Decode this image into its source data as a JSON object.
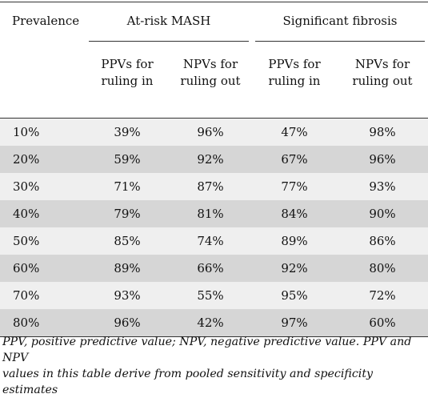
{
  "table": {
    "prevalence_header": "Prevalence",
    "groups": [
      {
        "title": "At-risk MASH",
        "columns": [
          "PPVs for ruling in",
          "NPVs for ruling out"
        ]
      },
      {
        "title": "Significant fibrosis",
        "columns": [
          "PPVs for ruling in",
          "NPVs for ruling out"
        ]
      }
    ],
    "rows": [
      {
        "prevalence": "10%",
        "mash_ppv": "39%",
        "mash_npv": "96%",
        "fib_ppv": "47%",
        "fib_npv": "98%"
      },
      {
        "prevalence": "20%",
        "mash_ppv": "59%",
        "mash_npv": "92%",
        "fib_ppv": "67%",
        "fib_npv": "96%"
      },
      {
        "prevalence": "30%",
        "mash_ppv": "71%",
        "mash_npv": "87%",
        "fib_ppv": "77%",
        "fib_npv": "93%"
      },
      {
        "prevalence": "40%",
        "mash_ppv": "79%",
        "mash_npv": "81%",
        "fib_ppv": "84%",
        "fib_npv": "90%"
      },
      {
        "prevalence": "50%",
        "mash_ppv": "85%",
        "mash_npv": "74%",
        "fib_ppv": "89%",
        "fib_npv": "86%"
      },
      {
        "prevalence": "60%",
        "mash_ppv": "89%",
        "mash_npv": "66%",
        "fib_ppv": "92%",
        "fib_npv": "80%"
      },
      {
        "prevalence": "70%",
        "mash_ppv": "93%",
        "mash_npv": "55%",
        "fib_ppv": "95%",
        "fib_npv": "72%"
      },
      {
        "prevalence": "80%",
        "mash_ppv": "96%",
        "mash_npv": "42%",
        "fib_ppv": "97%",
        "fib_npv": "60%"
      }
    ]
  },
  "footnote": {
    "line1": "PPV, positive predictive value; NPV, negative predictive value. PPV and NPV",
    "line2": "values in this table derive from pooled sensitivity and specificity estimates"
  },
  "colors": {
    "row_light": "#efefef",
    "row_dark": "#d6d6d6",
    "rule": "#333333"
  }
}
